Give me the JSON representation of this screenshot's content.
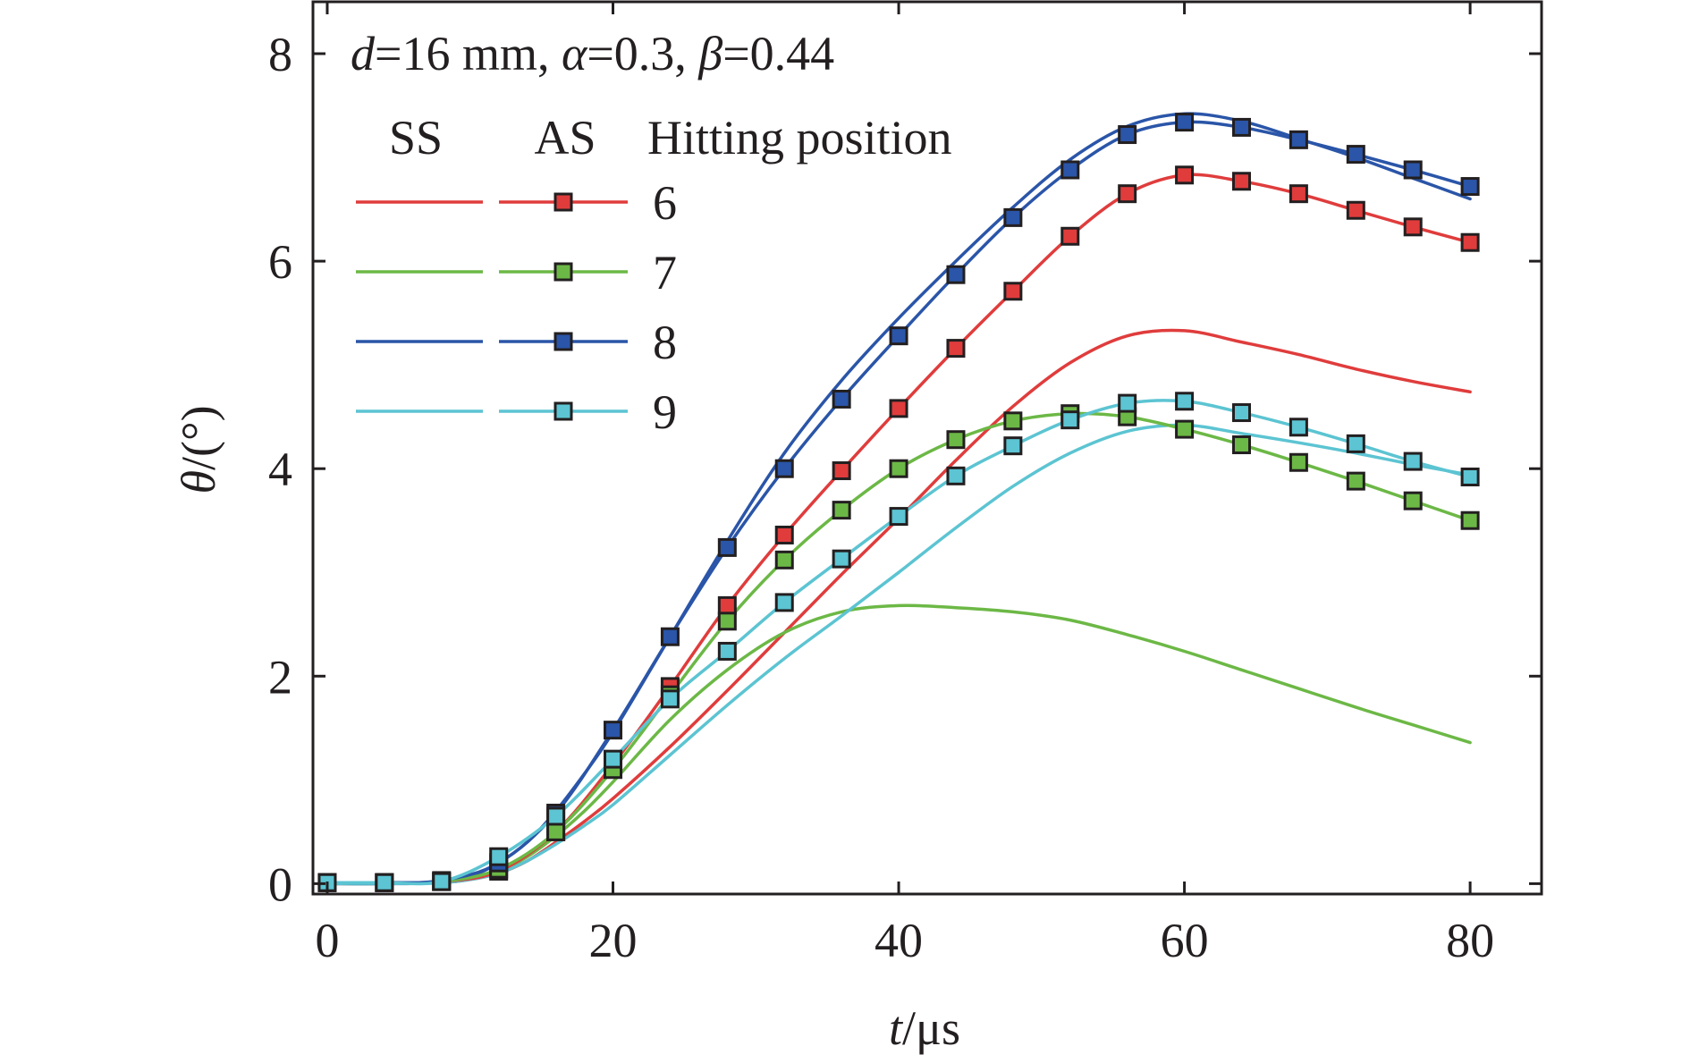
{
  "chart_data": {
    "type": "line",
    "annotation": {
      "d_sym": "d",
      "d_val": "=16 mm, ",
      "alpha_sym": "α",
      "alpha_val": "=0.3, ",
      "beta_sym": "β",
      "beta_val": "=0.44"
    },
    "xlabel": {
      "sym": "t",
      "unit": "/μs"
    },
    "ylabel": {
      "sym": "θ",
      "unit": "/(°)"
    },
    "xlim": [
      -1,
      85
    ],
    "ylim": [
      -0.1,
      8.5
    ],
    "xticks": [
      0,
      20,
      40,
      60,
      80
    ],
    "xtick_labels": [
      "0",
      "20",
      "40",
      "60",
      "80"
    ],
    "yticks": [
      0,
      2,
      4,
      6,
      8
    ],
    "ytick_labels": [
      "0",
      "2",
      "4",
      "6",
      "8"
    ],
    "legend": {
      "placement": "top-left",
      "header_ss": "SS",
      "header_as": "AS",
      "header_pos": "Hitting position"
    },
    "colors": {
      "6": "#e03c3c",
      "7": "#6cb846",
      "8": "#2a55a8",
      "9": "#5cc4d2"
    },
    "series": [
      {
        "key": "6",
        "label": "6",
        "kind": "SS",
        "x": [
          0,
          4,
          8,
          10,
          12,
          14,
          16,
          18,
          20,
          24,
          28,
          32,
          36,
          40,
          44,
          48,
          52,
          56,
          60,
          64,
          68,
          72,
          76,
          80
        ],
        "y": [
          0,
          0,
          0.01,
          0.04,
          0.1,
          0.22,
          0.4,
          0.6,
          0.82,
          1.32,
          1.86,
          2.42,
          2.98,
          3.52,
          4.08,
          4.6,
          5.02,
          5.28,
          5.33,
          5.22,
          5.1,
          4.96,
          4.84,
          4.74
        ]
      },
      {
        "key": "6",
        "label": "6",
        "kind": "AS",
        "x": [
          0,
          4,
          8,
          12,
          16,
          20,
          24,
          28,
          32,
          36,
          40,
          44,
          48,
          52,
          56,
          60,
          64,
          68,
          72,
          76,
          80
        ],
        "y": [
          0.01,
          0.01,
          0.02,
          0.12,
          0.5,
          1.15,
          1.9,
          2.68,
          3.36,
          3.98,
          4.58,
          5.16,
          5.71,
          6.24,
          6.65,
          6.83,
          6.77,
          6.65,
          6.49,
          6.33,
          6.18
        ]
      },
      {
        "key": "7",
        "label": "7",
        "kind": "SS",
        "x": [
          0,
          4,
          8,
          10,
          12,
          14,
          16,
          18,
          20,
          24,
          28,
          32,
          36,
          40,
          44,
          48,
          52,
          56,
          60,
          64,
          68,
          72,
          76,
          80
        ],
        "y": [
          0,
          0,
          0.01,
          0.05,
          0.12,
          0.26,
          0.46,
          0.7,
          0.98,
          1.58,
          2.06,
          2.42,
          2.62,
          2.68,
          2.66,
          2.62,
          2.54,
          2.4,
          2.24,
          2.06,
          1.88,
          1.7,
          1.53,
          1.36
        ]
      },
      {
        "key": "7",
        "label": "7",
        "kind": "AS",
        "x": [
          0,
          4,
          8,
          12,
          16,
          20,
          24,
          28,
          32,
          36,
          40,
          44,
          48,
          52,
          56,
          60,
          64,
          68,
          72,
          76,
          80
        ],
        "y": [
          0.01,
          0.01,
          0.02,
          0.14,
          0.5,
          1.1,
          1.82,
          2.53,
          3.12,
          3.6,
          4.0,
          4.28,
          4.46,
          4.53,
          4.5,
          4.38,
          4.23,
          4.06,
          3.88,
          3.69,
          3.5
        ]
      },
      {
        "key": "8",
        "label": "8",
        "kind": "SS",
        "x": [
          0,
          4,
          8,
          10,
          12,
          14,
          16,
          18,
          20,
          24,
          28,
          32,
          36,
          40,
          44,
          48,
          52,
          56,
          60,
          64,
          68,
          72,
          76,
          80
        ],
        "y": [
          0,
          0,
          0.01,
          0.07,
          0.2,
          0.4,
          0.7,
          1.06,
          1.46,
          2.38,
          3.3,
          4.15,
          4.85,
          5.45,
          6.0,
          6.52,
          6.98,
          7.3,
          7.42,
          7.35,
          7.18,
          7.0,
          6.8,
          6.6
        ]
      },
      {
        "key": "8",
        "label": "8",
        "kind": "AS",
        "x": [
          0,
          4,
          8,
          12,
          16,
          20,
          24,
          28,
          32,
          36,
          40,
          44,
          48,
          52,
          56,
          60,
          64,
          68,
          72,
          76,
          80
        ],
        "y": [
          0.01,
          0.01,
          0.03,
          0.2,
          0.68,
          1.48,
          2.38,
          3.24,
          4.0,
          4.67,
          5.28,
          5.87,
          6.42,
          6.88,
          7.22,
          7.34,
          7.29,
          7.17,
          7.03,
          6.88,
          6.72
        ]
      },
      {
        "key": "9",
        "label": "9",
        "kind": "SS",
        "x": [
          0,
          4,
          8,
          10,
          12,
          14,
          16,
          18,
          20,
          24,
          28,
          32,
          36,
          40,
          44,
          48,
          52,
          56,
          60,
          64,
          68,
          72,
          76,
          80
        ],
        "y": [
          0,
          0,
          0.01,
          0.04,
          0.1,
          0.22,
          0.38,
          0.56,
          0.76,
          1.24,
          1.72,
          2.17,
          2.58,
          3.0,
          3.43,
          3.83,
          4.15,
          4.36,
          4.42,
          4.34,
          4.25,
          4.15,
          4.04,
          3.94
        ]
      },
      {
        "key": "9",
        "label": "9",
        "kind": "AS",
        "x": [
          0,
          4,
          8,
          12,
          16,
          20,
          24,
          28,
          32,
          36,
          40,
          44,
          48,
          52,
          56,
          60,
          64,
          68,
          72,
          76,
          80
        ],
        "y": [
          0.01,
          0.01,
          0.02,
          0.26,
          0.65,
          1.2,
          1.78,
          2.24,
          2.71,
          3.13,
          3.54,
          3.93,
          4.22,
          4.47,
          4.63,
          4.65,
          4.54,
          4.4,
          4.24,
          4.07,
          3.92
        ]
      }
    ]
  }
}
